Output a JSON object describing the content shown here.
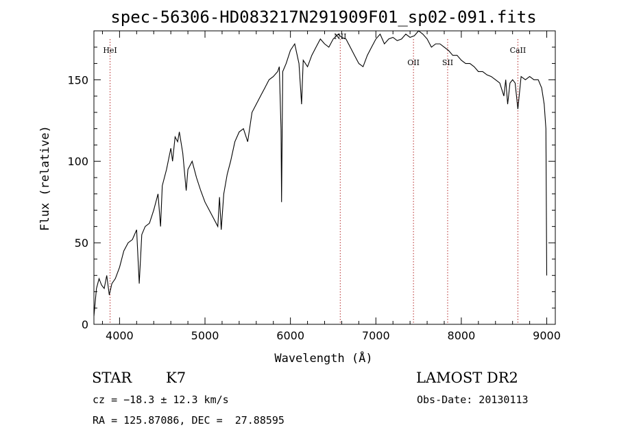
{
  "chart_data": {
    "type": "line",
    "title": "spec-56306-HD083217N291909F01_sp02-091.fits",
    "xlabel": "Wavelength (Å)",
    "ylabel": "Flux (relative)",
    "xlim": [
      3700,
      9100
    ],
    "ylim": [
      0,
      180
    ],
    "xticks": [
      4000,
      5000,
      6000,
      7000,
      8000,
      9000
    ],
    "yticks": [
      0,
      50,
      100,
      150
    ],
    "grid": false,
    "legend": "none",
    "colors": {
      "spectrum": "#000000",
      "line_marker": "#b22222"
    },
    "line_markers": [
      {
        "label": "HeI",
        "x": 3889
      },
      {
        "label": "NII",
        "x": 6583
      },
      {
        "label": "OII",
        "x": 7440
      },
      {
        "label": "SII",
        "x": 7840
      },
      {
        "label": "CaII",
        "x": 8662
      }
    ],
    "series": [
      {
        "x": [
          3700,
          3730,
          3760,
          3790,
          3820,
          3850,
          3880,
          3910,
          3950,
          4000,
          4050,
          4100,
          4150,
          4200,
          4230,
          4260,
          4300,
          4350,
          4400,
          4450,
          4480,
          4500,
          4550,
          4600,
          4620,
          4650,
          4680,
          4700,
          4740,
          4780,
          4800,
          4850,
          4900,
          4950,
          5000,
          5050,
          5100,
          5150,
          5170,
          5190,
          5220,
          5260,
          5300,
          5350,
          5400,
          5450,
          5500,
          5550,
          5600,
          5650,
          5700,
          5750,
          5800,
          5850,
          5870,
          5890,
          5896,
          5910,
          5950,
          6000,
          6050,
          6100,
          6130,
          6150,
          6200,
          6250,
          6300,
          6350,
          6400,
          6450,
          6500,
          6560,
          6600,
          6650,
          6700,
          6750,
          6800,
          6850,
          6900,
          6950,
          7000,
          7050,
          7100,
          7150,
          7200,
          7250,
          7300,
          7350,
          7400,
          7450,
          7500,
          7550,
          7600,
          7650,
          7700,
          7750,
          7800,
          7850,
          7900,
          7950,
          8000,
          8050,
          8100,
          8150,
          8200,
          8250,
          8300,
          8350,
          8400,
          8450,
          8498,
          8520,
          8542,
          8570,
          8600,
          8630,
          8662,
          8700,
          8750,
          8800,
          8850,
          8900,
          8940,
          8970,
          8990,
          9000
        ],
        "values": [
          5,
          22,
          28,
          24,
          22,
          30,
          18,
          25,
          28,
          35,
          45,
          50,
          52,
          58,
          25,
          55,
          60,
          62,
          70,
          80,
          60,
          85,
          95,
          108,
          100,
          115,
          112,
          118,
          105,
          82,
          95,
          100,
          90,
          82,
          75,
          70,
          65,
          60,
          78,
          58,
          80,
          92,
          100,
          112,
          118,
          120,
          112,
          130,
          135,
          140,
          145,
          150,
          152,
          155,
          158,
          120,
          75,
          155,
          160,
          168,
          172,
          160,
          135,
          162,
          158,
          165,
          170,
          175,
          172,
          170,
          175,
          178,
          176,
          175,
          170,
          165,
          160,
          158,
          165,
          170,
          175,
          178,
          172,
          175,
          176,
          174,
          175,
          178,
          176,
          177,
          180,
          178,
          175,
          170,
          172,
          172,
          170,
          168,
          165,
          165,
          162,
          160,
          160,
          158,
          155,
          155,
          153,
          152,
          150,
          148,
          140,
          150,
          135,
          148,
          150,
          148,
          132,
          152,
          150,
          152,
          150,
          150,
          145,
          135,
          120,
          30
        ]
      }
    ]
  },
  "info": {
    "object_class": "STAR",
    "subclass": "K7",
    "survey": "LAMOST DR2",
    "cz": "cz = −18.3 ± 12.3 km/s",
    "obs_date": "Obs-Date: 20130113",
    "coords": "RA = 125.87086, DEC =  27.88595"
  }
}
